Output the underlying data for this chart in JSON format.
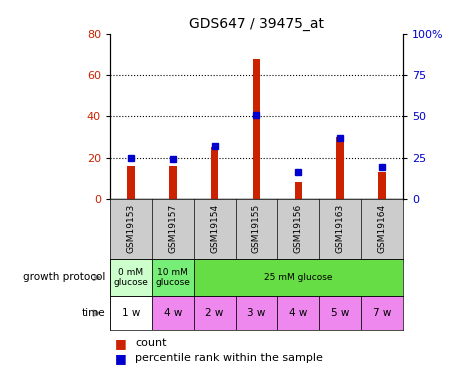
{
  "title": "GDS647 / 39475_at",
  "samples": [
    "GSM19153",
    "GSM19157",
    "GSM19154",
    "GSM19155",
    "GSM19156",
    "GSM19163",
    "GSM19164"
  ],
  "counts": [
    16,
    16,
    25,
    68,
    8,
    30,
    13
  ],
  "percentiles": [
    25,
    24,
    32,
    51,
    16,
    37,
    19
  ],
  "left_ylim": [
    0,
    80
  ],
  "right_ylim": [
    0,
    100
  ],
  "left_yticks": [
    0,
    20,
    40,
    60,
    80
  ],
  "right_yticks": [
    0,
    25,
    50,
    75,
    100
  ],
  "right_yticklabels": [
    "0",
    "25",
    "50",
    "75",
    "100%"
  ],
  "bar_color": "#cc2200",
  "square_color": "#0000cc",
  "growth_protocol_groups": [
    {
      "label": "0 mM\nglucose",
      "span": 1,
      "color": "#ccffcc"
    },
    {
      "label": "10 mM\nglucose",
      "span": 1,
      "color": "#77ee77"
    },
    {
      "label": "25 mM glucose",
      "span": 5,
      "color": "#66dd44"
    }
  ],
  "time_labels": [
    "1 w",
    "4 w",
    "2 w",
    "3 w",
    "4 w",
    "5 w",
    "7 w"
  ],
  "time_colors": [
    "#ffffff",
    "#ee88ee",
    "#ee88ee",
    "#ee88ee",
    "#ee88ee",
    "#ee88ee",
    "#ee88ee"
  ],
  "legend_count_label": "count",
  "legend_pct_label": "percentile rank within the sample",
  "growth_protocol_label": "growth protocol",
  "time_label": "time",
  "dotted_grid_values": [
    20,
    40,
    60
  ],
  "axis_bg": "#ffffff",
  "sample_area_color": "#cccccc",
  "bar_width": 0.18
}
